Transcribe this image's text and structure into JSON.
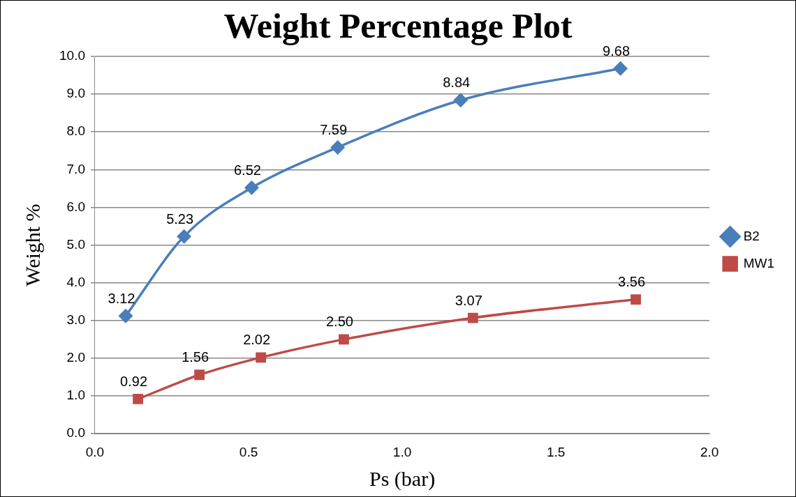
{
  "chart_data": {
    "type": "line",
    "title": "Weight Percentage Plot",
    "xlabel": "Ps (bar)",
    "ylabel": "Weight %",
    "xlim": [
      0,
      2
    ],
    "xticks": [
      {
        "value": 0,
        "label": "0.0"
      },
      {
        "value": 0.5,
        "label": "0.5"
      },
      {
        "value": 1,
        "label": "1.0"
      },
      {
        "value": 1.5,
        "label": "1.5"
      },
      {
        "value": 2,
        "label": "2.0"
      }
    ],
    "ylim": [
      0,
      10
    ],
    "yticks": [
      {
        "value": 0,
        "label": "0.0"
      },
      {
        "value": 1,
        "label": "1.0"
      },
      {
        "value": 2,
        "label": "2.0"
      },
      {
        "value": 3,
        "label": "3.0"
      },
      {
        "value": 4,
        "label": "4.0"
      },
      {
        "value": 5,
        "label": "5.0"
      },
      {
        "value": 6,
        "label": "6.0"
      },
      {
        "value": 7,
        "label": "7.0"
      },
      {
        "value": 8,
        "label": "8.0"
      },
      {
        "value": 9,
        "label": "9.0"
      },
      {
        "value": 10,
        "label": "10.0"
      }
    ],
    "grid": "y",
    "legend": "right",
    "series": [
      {
        "name": "B2",
        "color": "#4a7ebb",
        "marker": "diamond",
        "x": [
          0.1,
          0.29,
          0.51,
          0.79,
          1.19,
          1.71
        ],
        "values": [
          3.12,
          5.23,
          6.52,
          7.59,
          8.84,
          9.68
        ],
        "value_labels": [
          "3.12",
          "5.23",
          "6.52",
          "7.59",
          "8.84",
          "9.68"
        ]
      },
      {
        "name": "MW1",
        "color": "#be4b48",
        "marker": "square",
        "x": [
          0.14,
          0.34,
          0.54,
          0.81,
          1.23,
          1.76
        ],
        "values": [
          0.92,
          1.56,
          2.02,
          2.5,
          3.07,
          3.56
        ],
        "value_labels": [
          "0.92",
          "1.56",
          "2.02",
          "2.50",
          "3.07",
          "3.56"
        ]
      }
    ]
  }
}
